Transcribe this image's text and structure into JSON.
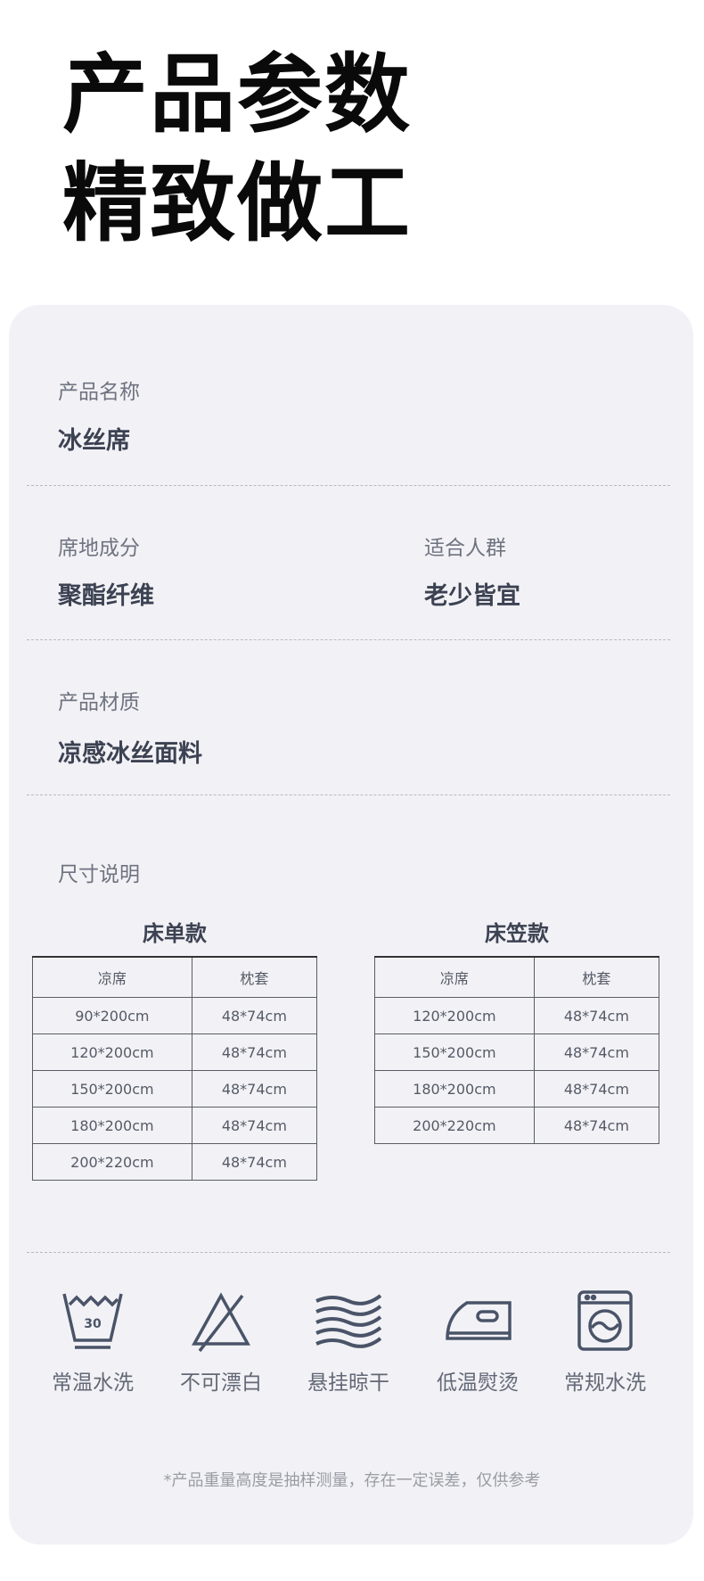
{
  "header": {
    "line1": "产品参数",
    "line2": "精致做工"
  },
  "specs": {
    "name": {
      "label": "产品名称",
      "value": "冰丝席"
    },
    "composition": {
      "label": "席地成分",
      "value": "聚酯纤维"
    },
    "audience": {
      "label": "适合人群",
      "value": "老少皆宜"
    },
    "material": {
      "label": "产品材质",
      "value": "凉感冰丝面料"
    },
    "size": {
      "label": "尺寸说明"
    }
  },
  "tables": [
    {
      "title": "床单款",
      "headers": [
        "凉席",
        "枕套"
      ],
      "rows": [
        [
          "90*200cm",
          "48*74cm"
        ],
        [
          "120*200cm",
          "48*74cm"
        ],
        [
          "150*200cm",
          "48*74cm"
        ],
        [
          "180*200cm",
          "48*74cm"
        ],
        [
          "200*220cm",
          "48*74cm"
        ]
      ]
    },
    {
      "title": "床笠款",
      "headers": [
        "凉席",
        "枕套"
      ],
      "rows": [
        [
          "120*200cm",
          "48*74cm"
        ],
        [
          "150*200cm",
          "48*74cm"
        ],
        [
          "180*200cm",
          "48*74cm"
        ],
        [
          "200*220cm",
          "48*74cm"
        ]
      ]
    }
  ],
  "care": [
    {
      "icon": "wash-30-icon",
      "label": "常温水洗",
      "temp": "30"
    },
    {
      "icon": "no-bleach-icon",
      "label": "不可漂白"
    },
    {
      "icon": "hang-dry-icon",
      "label": "悬挂晾干"
    },
    {
      "icon": "low-iron-icon",
      "label": "低温熨烫"
    },
    {
      "icon": "washing-machine-icon",
      "label": "常规水洗"
    }
  ],
  "note": "*产品重量高度是抽样测量，存在一定误差，仅供参考",
  "colors": {
    "card": "#f2f2f6",
    "icon": "#4a5468",
    "value": "#3c4252"
  }
}
